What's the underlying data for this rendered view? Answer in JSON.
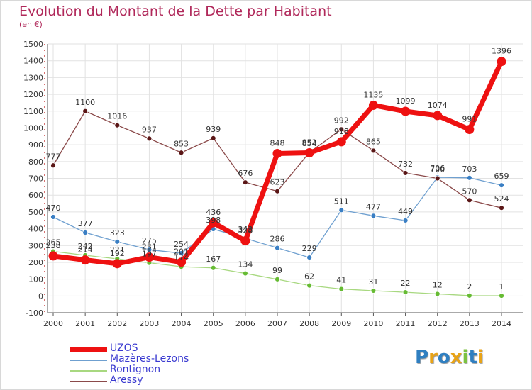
{
  "title": "Evolution du Montant de la Dette par Habitant",
  "subtitle": "(en €)",
  "logo": {
    "text": "Proxiti",
    "letters": [
      {
        "ch": "P",
        "color": "#2f7fc1"
      },
      {
        "ch": "r",
        "color": "#e8a317"
      },
      {
        "ch": "o",
        "color": "#2f7fc1"
      },
      {
        "ch": "x",
        "color": "#e8a317"
      },
      {
        "ch": "i",
        "color": "#7cc242"
      },
      {
        "ch": "t",
        "color": "#2f7fc1"
      },
      {
        "ch": "i",
        "color": "#e8a317"
      }
    ]
  },
  "chart_data": {
    "type": "line",
    "title": "Evolution du Montant de la Dette par Habitant",
    "ylabel": "(en €)",
    "ylim": [
      -100,
      1500
    ],
    "ytick_step": 100,
    "grid": true,
    "legend_placement": "bottom-left",
    "x": [
      "2000",
      "2001",
      "2002",
      "2003",
      "2004",
      "2005",
      "2006",
      "2007",
      "2008",
      "2009",
      "2010",
      "2011",
      "2012",
      "2013",
      "2014"
    ],
    "series": [
      {
        "name": "UZOS",
        "color": "#ee1111",
        "marker": "#ee1111",
        "emphasis": true,
        "values": [
          238,
          214,
          192,
          231,
          201,
          436,
          328,
          848,
          852,
          918,
          1135,
          1099,
          1074,
          991,
          1396
        ]
      },
      {
        "name": "Mazères-Lezons",
        "color": "#6fa0d0",
        "marker": "#3a7fc4",
        "emphasis": false,
        "values": [
          470,
          377,
          323,
          275,
          254,
          398,
          343,
          286,
          229,
          511,
          477,
          449,
          706,
          703,
          659
        ]
      },
      {
        "name": "Rontignon",
        "color": "#a8d880",
        "marker": "#66bb33",
        "emphasis": false,
        "values": [
          265,
          242,
          221,
          197,
          174,
          167,
          134,
          99,
          62,
          41,
          31,
          22,
          12,
          2,
          1
        ]
      },
      {
        "name": "Aressy",
        "color": "#8b4a4a",
        "marker": "#5a1616",
        "emphasis": false,
        "values": [
          777,
          1100,
          1016,
          937,
          853,
          939,
          676,
          623,
          854,
          992,
          865,
          732,
          700,
          570,
          524
        ]
      }
    ]
  }
}
